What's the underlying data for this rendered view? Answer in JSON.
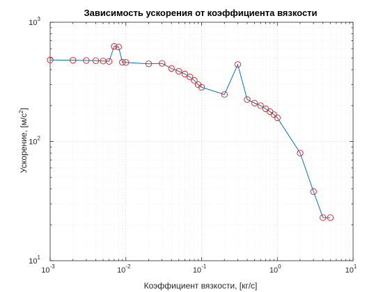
{
  "chart_data": {
    "type": "line",
    "title": "Зависимость ускорения от коэффициента вязкости",
    "xlabel": "Коэффициент вязкости, [кг/с]",
    "ylabel_text": "Ускорение, [м/с",
    "ylabel_sup": "2",
    "ylabel_end": "]",
    "xscale": "log",
    "yscale": "log",
    "xlim": [
      0.001,
      10
    ],
    "ylim": [
      10,
      1000
    ],
    "grid": true,
    "x_ticks": [
      {
        "base": "10",
        "exp": "-3",
        "value": 0.001
      },
      {
        "base": "10",
        "exp": "-2",
        "value": 0.01
      },
      {
        "base": "10",
        "exp": "-1",
        "value": 0.1
      },
      {
        "base": "10",
        "exp": "0",
        "value": 1
      },
      {
        "base": "10",
        "exp": "1",
        "value": 10
      }
    ],
    "y_ticks": [
      {
        "base": "10",
        "exp": "1",
        "value": 10
      },
      {
        "base": "10",
        "exp": "2",
        "value": 100
      },
      {
        "base": "10",
        "exp": "3",
        "value": 1000
      }
    ],
    "line_color": "#0072BD",
    "marker_color": "#e8141a",
    "series": [
      {
        "x": [
          0.001,
          0.002,
          0.003,
          0.004,
          0.005,
          0.006,
          0.007,
          0.008,
          0.009,
          0.01,
          0.02,
          0.03,
          0.04,
          0.05,
          0.06,
          0.07,
          0.08,
          0.09,
          0.1,
          0.2,
          0.3,
          0.4,
          0.5,
          0.6,
          0.7,
          0.8,
          0.9,
          1,
          2,
          3,
          4,
          5
        ],
        "y": [
          483,
          480,
          478,
          476,
          473,
          470,
          628,
          620,
          462,
          460,
          448,
          452,
          410,
          388,
          368,
          348,
          325,
          300,
          285,
          248,
          442,
          225,
          210,
          200,
          188,
          178,
          168,
          158,
          80,
          38,
          23,
          23
        ]
      }
    ]
  }
}
